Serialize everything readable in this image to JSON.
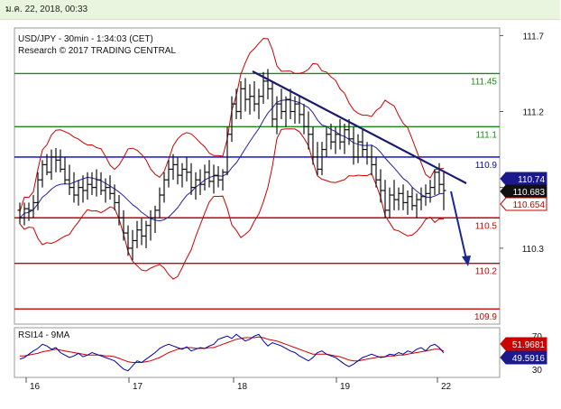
{
  "header": {
    "date_text": "ม.ค. 22, 2018, 00:33"
  },
  "chart_data": {
    "type": "candlestick",
    "title": "USD/JPY - 30min - 1:34:03 (CET)",
    "subtitle": "Research © 2017 TRADING CENTRAL",
    "ylim": [
      109.8,
      111.75
    ],
    "y_ticks": [
      "111.7",
      "111.2",
      "110.7",
      "110.3"
    ],
    "x_ticks": [
      "16",
      "17",
      "18",
      "19",
      "22"
    ],
    "levels": [
      {
        "label": "111.45",
        "value": 111.45,
        "color": "#1a8a1a"
      },
      {
        "label": "111.1",
        "value": 111.1,
        "color": "#1a8a1a"
      },
      {
        "label": "110.9",
        "value": 110.9,
        "color": "#0000cc"
      },
      {
        "label": "110.5",
        "value": 110.5,
        "color": "#cc0000"
      },
      {
        "label": "110.2",
        "value": 110.2,
        "color": "#cc0000"
      },
      {
        "label": "109.9",
        "value": 109.9,
        "color": "#cc0000"
      }
    ],
    "price_tags": [
      {
        "label": "110.74",
        "value": 110.74,
        "bg": "#1a1a8c",
        "fg": "#ffffff"
      },
      {
        "label": "110.683",
        "value": 110.683,
        "bg": "#111111",
        "fg": "#ffffff"
      },
      {
        "label": "110.654",
        "value": 110.654,
        "bg": "#ffffff",
        "fg": "#cc0000"
      }
    ],
    "ohlc": [
      [
        110.55,
        110.6,
        110.46,
        110.5
      ],
      [
        110.5,
        110.6,
        110.45,
        110.56
      ],
      [
        110.56,
        110.6,
        110.48,
        110.55
      ],
      [
        110.55,
        110.65,
        110.5,
        110.6
      ],
      [
        110.6,
        110.8,
        110.55,
        110.75
      ],
      [
        110.75,
        110.88,
        110.7,
        110.85
      ],
      [
        110.85,
        110.92,
        110.78,
        110.8
      ],
      [
        110.8,
        110.95,
        110.75,
        110.9
      ],
      [
        110.9,
        110.96,
        110.8,
        110.88
      ],
      [
        110.88,
        110.95,
        110.8,
        110.82
      ],
      [
        110.82,
        110.9,
        110.72,
        110.75
      ],
      [
        110.75,
        110.85,
        110.65,
        110.7
      ],
      [
        110.7,
        110.8,
        110.6,
        110.65
      ],
      [
        110.65,
        110.75,
        110.58,
        110.7
      ],
      [
        110.7,
        110.78,
        110.6,
        110.68
      ],
      [
        110.68,
        110.8,
        110.62,
        110.72
      ],
      [
        110.72,
        110.8,
        110.65,
        110.7
      ],
      [
        110.7,
        110.82,
        110.64,
        110.75
      ],
      [
        110.75,
        110.8,
        110.65,
        110.68
      ],
      [
        110.68,
        110.76,
        110.6,
        110.7
      ],
      [
        110.7,
        110.78,
        110.62,
        110.66
      ],
      [
        110.66,
        110.72,
        110.55,
        110.6
      ],
      [
        110.6,
        110.65,
        110.45,
        110.5
      ],
      [
        110.5,
        110.55,
        110.35,
        110.4
      ],
      [
        110.4,
        110.45,
        110.25,
        110.3
      ],
      [
        110.3,
        110.42,
        110.22,
        110.35
      ],
      [
        110.35,
        110.48,
        110.3,
        110.42
      ],
      [
        110.42,
        110.5,
        110.32,
        110.38
      ],
      [
        110.38,
        110.48,
        110.3,
        110.45
      ],
      [
        110.45,
        110.55,
        110.35,
        110.5
      ],
      [
        110.5,
        110.58,
        110.4,
        110.55
      ],
      [
        110.55,
        110.7,
        110.5,
        110.65
      ],
      [
        110.65,
        110.8,
        110.6,
        110.75
      ],
      [
        110.75,
        110.88,
        110.7,
        110.82
      ],
      [
        110.82,
        110.92,
        110.75,
        110.85
      ],
      [
        110.85,
        110.9,
        110.72,
        110.78
      ],
      [
        110.78,
        110.86,
        110.7,
        110.82
      ],
      [
        110.82,
        110.9,
        110.74,
        110.8
      ],
      [
        110.8,
        110.86,
        110.65,
        110.7
      ],
      [
        110.7,
        110.8,
        110.62,
        110.75
      ],
      [
        110.75,
        110.82,
        110.65,
        110.72
      ],
      [
        110.72,
        110.85,
        110.68,
        110.8
      ],
      [
        110.8,
        110.88,
        110.7,
        110.74
      ],
      [
        110.74,
        110.85,
        110.66,
        110.78
      ],
      [
        110.78,
        110.84,
        110.7,
        110.75
      ],
      [
        110.75,
        110.82,
        110.68,
        110.8
      ],
      [
        110.8,
        111.1,
        110.78,
        111.05
      ],
      [
        111.05,
        111.3,
        111.0,
        111.25
      ],
      [
        111.25,
        111.35,
        111.15,
        111.2
      ],
      [
        111.2,
        111.4,
        111.15,
        111.35
      ],
      [
        111.35,
        111.42,
        111.2,
        111.28
      ],
      [
        111.28,
        111.38,
        111.18,
        111.3
      ],
      [
        111.3,
        111.4,
        111.2,
        111.25
      ],
      [
        111.25,
        111.35,
        111.15,
        111.3
      ],
      [
        111.3,
        111.46,
        111.25,
        111.4
      ],
      [
        111.4,
        111.48,
        111.28,
        111.35
      ],
      [
        111.35,
        111.4,
        111.1,
        111.15
      ],
      [
        111.15,
        111.3,
        111.05,
        111.25
      ],
      [
        111.25,
        111.35,
        111.15,
        111.2
      ],
      [
        111.2,
        111.3,
        111.1,
        111.28
      ],
      [
        111.28,
        111.35,
        111.15,
        111.2
      ],
      [
        111.2,
        111.3,
        111.12,
        111.25
      ],
      [
        111.25,
        111.3,
        111.12,
        111.18
      ],
      [
        111.18,
        111.25,
        111.05,
        111.1
      ],
      [
        111.1,
        111.2,
        110.95,
        111.05
      ],
      [
        111.05,
        111.1,
        110.85,
        110.9
      ],
      [
        110.9,
        111.0,
        110.78,
        110.82
      ],
      [
        110.82,
        111.0,
        110.78,
        110.95
      ],
      [
        110.95,
        111.1,
        110.9,
        111.05
      ],
      [
        111.05,
        111.12,
        110.95,
        111.0
      ],
      [
        111.0,
        111.1,
        110.92,
        111.05
      ],
      [
        111.05,
        111.15,
        110.95,
        111.0
      ],
      [
        111.0,
        111.12,
        110.92,
        111.08
      ],
      [
        111.08,
        111.15,
        110.98,
        111.02
      ],
      [
        111.02,
        111.1,
        110.85,
        110.9
      ],
      [
        110.9,
        111.05,
        110.86,
        111.0
      ],
      [
        111.0,
        111.08,
        110.9,
        110.95
      ],
      [
        110.95,
        111.0,
        110.85,
        110.9
      ],
      [
        110.9,
        110.98,
        110.78,
        110.85
      ],
      [
        110.85,
        110.9,
        110.7,
        110.75
      ],
      [
        110.75,
        110.82,
        110.6,
        110.68
      ],
      [
        110.68,
        110.75,
        110.5,
        110.55
      ],
      [
        110.55,
        110.7,
        110.5,
        110.65
      ],
      [
        110.65,
        110.75,
        110.55,
        110.62
      ],
      [
        110.62,
        110.7,
        110.55,
        110.66
      ],
      [
        110.66,
        110.72,
        110.55,
        110.6
      ],
      [
        110.6,
        110.68,
        110.52,
        110.64
      ],
      [
        110.64,
        110.7,
        110.55,
        110.58
      ],
      [
        110.58,
        110.66,
        110.5,
        110.62
      ],
      [
        110.62,
        110.7,
        110.55,
        110.64
      ],
      [
        110.64,
        110.72,
        110.58,
        110.66
      ],
      [
        110.66,
        110.75,
        110.6,
        110.7
      ],
      [
        110.7,
        110.82,
        110.65,
        110.8
      ],
      [
        110.8,
        110.86,
        110.66,
        110.72
      ],
      [
        110.72,
        110.8,
        110.55,
        110.68
      ]
    ],
    "rsi_panel": {
      "label": "RSI14 - 9MA",
      "ylim": [
        20,
        80
      ],
      "y_ticks": [
        "70",
        "30"
      ],
      "rsi_tag": "49.5916",
      "ma_tag": "51.9681",
      "rsi_color": "#0000aa",
      "ma_color": "#cc0000",
      "rsi": [
        42,
        44,
        48,
        52,
        55,
        60,
        58,
        54,
        56,
        50,
        47,
        44,
        46,
        49,
        45,
        47,
        50,
        48,
        46,
        44,
        42,
        40,
        35,
        30,
        28,
        34,
        40,
        38,
        42,
        46,
        50,
        55,
        58,
        60,
        58,
        56,
        54,
        57,
        52,
        54,
        56,
        55,
        58,
        60,
        66,
        68,
        70,
        67,
        72,
        68,
        64,
        66,
        70,
        72,
        64,
        58,
        62,
        60,
        58,
        55,
        52,
        50,
        46,
        43,
        40,
        44,
        50,
        52,
        48,
        46,
        44,
        40,
        36,
        33,
        36,
        40,
        44,
        46,
        48,
        46,
        44,
        45,
        48,
        47,
        50,
        48,
        52,
        50,
        54,
        56,
        52,
        58,
        60,
        56,
        49.6
      ],
      "ma": [
        46,
        46,
        47,
        48,
        49,
        51,
        52,
        53,
        54,
        53,
        52,
        51,
        50,
        49,
        48,
        47,
        47,
        47,
        47,
        46,
        46,
        45,
        43,
        41,
        39,
        38,
        38,
        38,
        39,
        40,
        42,
        44,
        47,
        50,
        52,
        54,
        55,
        56,
        56,
        55,
        55,
        55,
        56,
        56,
        58,
        60,
        62,
        64,
        66,
        67,
        68,
        68,
        68,
        69,
        68,
        66,
        65,
        64,
        62,
        60,
        58,
        56,
        54,
        52,
        50,
        48,
        48,
        48,
        48,
        47,
        46,
        45,
        43,
        41,
        40,
        40,
        41,
        42,
        43,
        44,
        45,
        45,
        46,
        46,
        47,
        47,
        48,
        49,
        50,
        51,
        52,
        53,
        54,
        54,
        52
      ]
    }
  }
}
